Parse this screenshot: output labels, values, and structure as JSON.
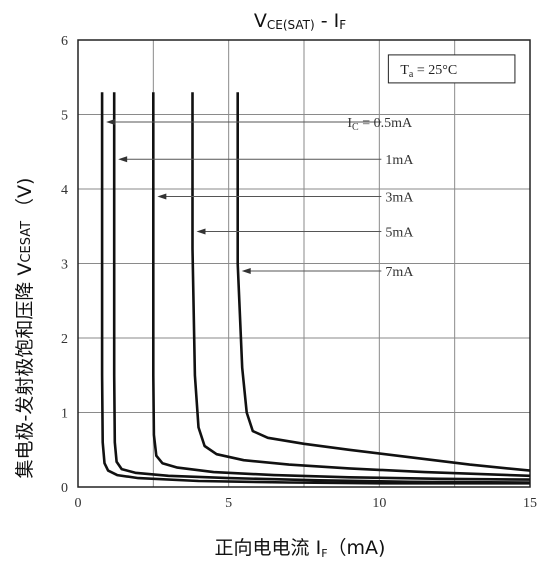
{
  "chart_data": {
    "type": "line",
    "title": {
      "main": "V",
      "sub1": "CE(SAT)",
      "mid": " - I",
      "sub2": "F"
    },
    "xlabel": {
      "main": "正向电电流 I",
      "sub": "F",
      "unit": "（mA)"
    },
    "ylabel": {
      "main": "集电极-发射极饱和压降 V",
      "sub": "CESAT",
      "unit": "（V)"
    },
    "xlim": [
      0,
      15
    ],
    "ylim": [
      0,
      6
    ],
    "xticks": [
      0,
      5,
      10,
      15
    ],
    "yticks": [
      0,
      1,
      2,
      3,
      4,
      5,
      6
    ],
    "grid": true,
    "condition": {
      "main": "T",
      "sub": "a",
      "rest": " = 25°C"
    },
    "series": [
      {
        "name": "Ic = 0.5mA",
        "x": [
          0.8,
          0.8,
          0.82,
          0.88,
          1.0,
          1.3,
          2.0,
          4.0,
          7.0,
          10.0,
          13.0,
          15.0
        ],
        "y": [
          5.3,
          1.5,
          0.6,
          0.32,
          0.22,
          0.16,
          0.12,
          0.08,
          0.06,
          0.05,
          0.05,
          0.05
        ]
      },
      {
        "name": "1mA",
        "x": [
          1.2,
          1.2,
          1.22,
          1.28,
          1.45,
          1.9,
          3.0,
          5.0,
          8.0,
          11.0,
          15.0
        ],
        "y": [
          5.3,
          1.5,
          0.6,
          0.34,
          0.24,
          0.19,
          0.15,
          0.12,
          0.09,
          0.07,
          0.06
        ]
      },
      {
        "name": "3mA",
        "x": [
          2.5,
          2.5,
          2.52,
          2.6,
          2.8,
          3.3,
          4.5,
          6.5,
          9.0,
          12.0,
          15.0
        ],
        "y": [
          5.3,
          1.5,
          0.7,
          0.42,
          0.32,
          0.26,
          0.2,
          0.16,
          0.13,
          0.11,
          0.1
        ]
      },
      {
        "name": "5mA",
        "x": [
          3.8,
          3.8,
          3.88,
          4.0,
          4.2,
          4.6,
          5.5,
          7.0,
          9.0,
          11.5,
          15.0
        ],
        "y": [
          5.3,
          3.2,
          1.5,
          0.8,
          0.55,
          0.44,
          0.36,
          0.3,
          0.25,
          0.2,
          0.15
        ]
      },
      {
        "name": "7mA",
        "x": [
          5.3,
          5.3,
          5.45,
          5.6,
          5.8,
          6.3,
          7.5,
          9.0,
          11.0,
          13.0,
          15.0
        ],
        "y": [
          5.3,
          3.0,
          1.6,
          1.0,
          0.75,
          0.66,
          0.58,
          0.5,
          0.4,
          0.3,
          0.22
        ]
      }
    ],
    "annotations": [
      {
        "text": "I",
        "sub": "C",
        "rest": " = 0.5mA",
        "series": 0,
        "arrow_y": 4.9,
        "label_y": 4.9
      },
      {
        "text": "1mA",
        "series": 1,
        "arrow_y": 4.4,
        "label_y": 4.4
      },
      {
        "text": "3mA",
        "series": 2,
        "arrow_y": 3.9,
        "label_y": 3.9
      },
      {
        "text": "5mA",
        "series": 3,
        "arrow_y": 3.43,
        "label_y": 3.43
      },
      {
        "text": "7mA",
        "series": 4,
        "arrow_y": 2.9,
        "label_y": 2.9
      }
    ]
  }
}
